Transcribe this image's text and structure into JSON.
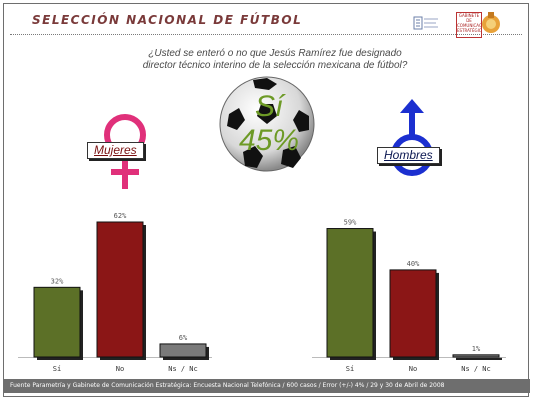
{
  "header": {
    "title": "SELECCIÓN NACIONAL DE FÚTBOL",
    "logo_text": "GABINETE DE COMUNICACIÓN ESTRATÉGICA"
  },
  "question": {
    "line1": "¿Usted se enteró o no que Jesús Ramírez fue designado",
    "line2": "director técnico interino de la selección mexicana de fútbol?"
  },
  "highlight": {
    "label": "Sí",
    "value": "45%"
  },
  "groups": {
    "women_label": "Mujeres",
    "men_label": "Hombres"
  },
  "colors": {
    "si": "#5c7027",
    "no": "#8b1616",
    "ns_nc": "#7a7a7a",
    "venus": "#e0307a",
    "mars": "#1b2fd0"
  },
  "chart_data": [
    {
      "type": "bar",
      "title": "Mujeres",
      "categories": [
        "Sí",
        "No",
        "Ns / Nc"
      ],
      "values": [
        32,
        62,
        6
      ],
      "value_labels": [
        "32%",
        "62%",
        "6%"
      ],
      "ylim": [
        0,
        70
      ],
      "grid": false,
      "legend": "none"
    },
    {
      "type": "bar",
      "title": "Hombres",
      "categories": [
        "Sí",
        "No",
        "Ns / Nc"
      ],
      "values": [
        59,
        40,
        1
      ],
      "value_labels": [
        "59%",
        "40%",
        "1%"
      ],
      "ylim": [
        0,
        70
      ],
      "grid": false,
      "legend": "none"
    }
  ],
  "footer": {
    "text": "Fuente Parametría y Gabinete de Comunicación Estratégica: Encuesta Nacional Telefónica / 600 casos / Error (+/-) 4% / 29 y 30 de Abril de 2008"
  }
}
